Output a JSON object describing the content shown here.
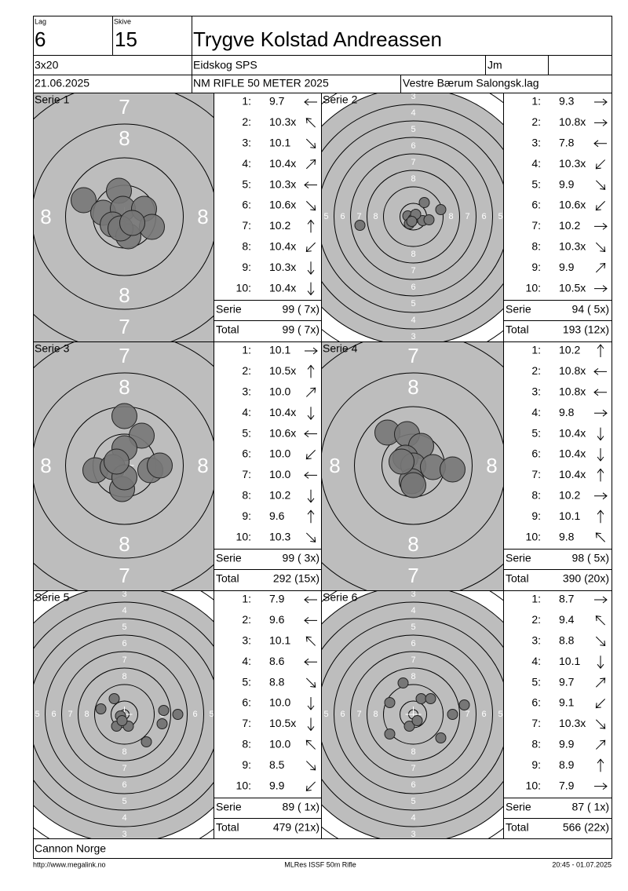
{
  "header": {
    "team_label": "Lag",
    "team": "6",
    "target_label": "Skive",
    "target": "15",
    "name": "Trygve Kolstad Andreassen",
    "program": "3x20",
    "club": "Eidskog SPS",
    "class": "Jm",
    "date": "21.06.2025",
    "competition": "NM RIFLE 50 METER 2025",
    "team_name": "Vestre Bærum Salongsk.lag"
  },
  "ring_labels": {
    "zoom": [
      "7",
      "8"
    ],
    "full": [
      "3",
      "4",
      "5",
      "6",
      "7",
      "8"
    ]
  },
  "shot_numbers": [
    "1:",
    "2:",
    "3:",
    "4:",
    "5:",
    "6:",
    "7:",
    "8:",
    "9:",
    "10:"
  ],
  "series_label": "Serie",
  "total_label": "Total",
  "series": [
    {
      "title": "Serie 1",
      "shots": [
        "9.7",
        "10.3x",
        "10.1",
        "10.4x",
        "10.3x",
        "10.6x",
        "10.2",
        "10.4x",
        "10.3x",
        "10.4x"
      ],
      "serie": "99 ( 7x)",
      "total": "99 ( 7x)"
    },
    {
      "title": "Serie 2",
      "shots": [
        "9.3",
        "10.8x",
        "7.8",
        "10.3x",
        "9.9",
        "10.6x",
        "10.2",
        "10.3x",
        "9.9",
        "10.5x"
      ],
      "serie": "94 ( 5x)",
      "total": "193 (12x)"
    },
    {
      "title": "Serie 3",
      "shots": [
        "10.1",
        "10.5x",
        "10.0",
        "10.4x",
        "10.6x",
        "10.0",
        "10.0",
        "10.2",
        "9.6",
        "10.3"
      ],
      "serie": "99 ( 3x)",
      "total": "292 (15x)"
    },
    {
      "title": "Serie 4",
      "shots": [
        "10.2",
        "10.8x",
        "10.8x",
        "9.8",
        "10.4x",
        "10.4x",
        "10.4x",
        "10.2",
        "10.1",
        "9.8"
      ],
      "serie": "98 ( 5x)",
      "total": "390 (20x)"
    },
    {
      "title": "Serie 5",
      "shots": [
        "7.9",
        "9.6",
        "10.1",
        "8.6",
        "8.8",
        "10.0",
        "10.5x",
        "10.0",
        "8.5",
        "9.9"
      ],
      "serie": "89 ( 1x)",
      "total": "479 (21x)"
    },
    {
      "title": "Serie 6",
      "shots": [
        "8.7",
        "9.4",
        "8.8",
        "10.1",
        "9.7",
        "9.1",
        "10.3x",
        "9.9",
        "8.9",
        "7.9"
      ],
      "serie": "87 ( 1x)",
      "total": "566 (22x)"
    }
  ],
  "footer": {
    "sponsor": "Cannon Norge",
    "url": "http://www.megalink.no",
    "software": "MLRes ISSF 50m Rifle",
    "printed": "20:45 - 01.07.2025"
  }
}
